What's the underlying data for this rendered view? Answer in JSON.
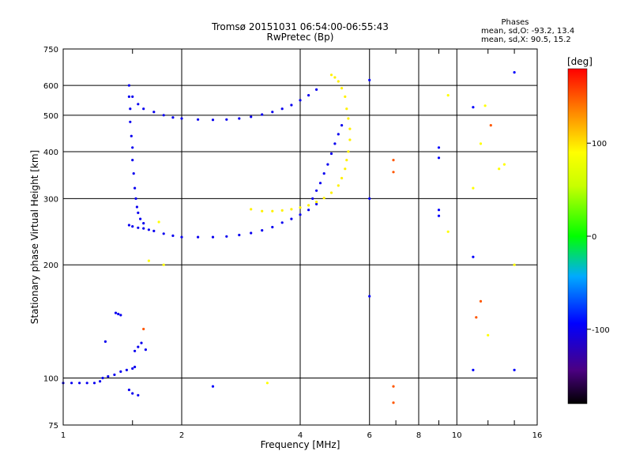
{
  "chart_data": {
    "type": "scatter",
    "title": "Tromsø 20151031 06:54:00-06:55:43",
    "subtitle": "RwPretec (Bp)",
    "xlabel": "Frequency [MHz]",
    "ylabel": "Stationary phase Virtual Height [km]",
    "xscale": "log",
    "yscale": "log",
    "xlim": [
      1,
      16
    ],
    "ylim": [
      75,
      750
    ],
    "xticks": [
      1,
      2,
      4,
      6,
      8,
      10,
      16
    ],
    "xtick_labels": [
      "1",
      "2",
      "4",
      "6",
      "8",
      "10",
      "16"
    ],
    "xminor_ticks": [
      1.5,
      7,
      9,
      12,
      14
    ],
    "yticks": [
      75,
      100,
      200,
      300,
      400,
      500,
      600,
      750
    ],
    "ytick_labels": [
      "75",
      "100",
      "200",
      "300",
      "400",
      "500",
      "600",
      "750"
    ],
    "grid": true,
    "phases": {
      "title": "Phases",
      "o_line": "mean, sd,O:  -93.2, 13.4",
      "x_line": "mean, sd,X:   90.5, 15.2"
    },
    "colorbar": {
      "label": "[deg]",
      "range": [
        -180,
        180
      ],
      "ticks": [
        100,
        0,
        -100
      ],
      "tick_labels": [
        "100",
        "0",
        "-100"
      ]
    },
    "series": [
      {
        "role": "O-mode low E trace",
        "phase": -100,
        "points": [
          [
            1.0,
            97
          ],
          [
            1.05,
            97
          ],
          [
            1.1,
            97
          ],
          [
            1.15,
            97
          ],
          [
            1.2,
            97
          ],
          [
            1.24,
            98
          ],
          [
            1.26,
            100
          ],
          [
            1.3,
            101
          ],
          [
            1.35,
            102
          ],
          [
            1.4,
            104
          ],
          [
            1.45,
            105
          ],
          [
            1.5,
            106
          ],
          [
            1.52,
            107
          ]
        ]
      },
      {
        "role": "O-mode sporadic",
        "phase": -100,
        "points": [
          [
            1.28,
            125
          ],
          [
            1.36,
            149
          ],
          [
            1.38,
            148
          ],
          [
            1.4,
            147
          ],
          [
            1.52,
            118
          ],
          [
            1.55,
            121
          ],
          [
            1.58,
            124
          ],
          [
            1.62,
            119
          ],
          [
            1.47,
            93
          ],
          [
            1.5,
            91
          ],
          [
            1.55,
            90
          ]
        ]
      },
      {
        "role": "O-mode F1 lower trace",
        "phase": -100,
        "points": [
          [
            1.47,
            255
          ],
          [
            1.5,
            253
          ],
          [
            1.55,
            251
          ],
          [
            1.6,
            250
          ],
          [
            1.65,
            248
          ],
          [
            1.7,
            246
          ],
          [
            1.8,
            242
          ],
          [
            1.9,
            239
          ],
          [
            2.0,
            237
          ],
          [
            2.2,
            237
          ],
          [
            2.4,
            237
          ],
          [
            2.6,
            238
          ],
          [
            2.8,
            240
          ],
          [
            3.0,
            243
          ],
          [
            3.2,
            247
          ],
          [
            3.4,
            252
          ],
          [
            3.6,
            259
          ],
          [
            3.8,
            265
          ],
          [
            4.0,
            272
          ],
          [
            4.2,
            280
          ],
          [
            4.4,
            290
          ]
        ]
      },
      {
        "role": "O-mode F1 cusp",
        "phase": -100,
        "points": [
          [
            1.47,
            600
          ],
          [
            1.47,
            560
          ],
          [
            1.48,
            520
          ],
          [
            1.48,
            480
          ],
          [
            1.49,
            440
          ],
          [
            1.5,
            410
          ],
          [
            1.5,
            380
          ],
          [
            1.51,
            350
          ],
          [
            1.52,
            320
          ],
          [
            1.53,
            300
          ],
          [
            1.54,
            285
          ],
          [
            1.55,
            275
          ],
          [
            1.57,
            265
          ],
          [
            1.6,
            258
          ]
        ]
      },
      {
        "role": "O-mode F2 upper trace",
        "phase": -100,
        "points": [
          [
            1.5,
            560
          ],
          [
            1.55,
            535
          ],
          [
            1.6,
            520
          ],
          [
            1.7,
            510
          ],
          [
            1.8,
            500
          ],
          [
            1.9,
            493
          ],
          [
            2.0,
            490
          ],
          [
            2.2,
            487
          ],
          [
            2.4,
            486
          ],
          [
            2.6,
            487
          ],
          [
            2.8,
            490
          ],
          [
            3.0,
            495
          ],
          [
            3.2,
            502
          ],
          [
            3.4,
            510
          ],
          [
            3.6,
            520
          ],
          [
            3.8,
            532
          ],
          [
            4.0,
            548
          ],
          [
            4.2,
            565
          ],
          [
            4.4,
            585
          ]
        ]
      },
      {
        "role": "O-mode F2 cusp",
        "phase": -100,
        "points": [
          [
            4.3,
            300
          ],
          [
            4.4,
            315
          ],
          [
            4.5,
            330
          ],
          [
            4.6,
            350
          ],
          [
            4.7,
            370
          ],
          [
            4.8,
            395
          ],
          [
            4.9,
            420
          ],
          [
            5.0,
            445
          ],
          [
            5.1,
            470
          ]
        ]
      },
      {
        "role": "X-mode F2 trace",
        "phase": 95,
        "points": [
          [
            3.0,
            281
          ],
          [
            3.2,
            278
          ],
          [
            3.4,
            278
          ],
          [
            3.6,
            279
          ],
          [
            3.8,
            281
          ],
          [
            4.0,
            284
          ],
          [
            4.2,
            288
          ],
          [
            4.4,
            294
          ],
          [
            4.6,
            301
          ],
          [
            4.8,
            311
          ],
          [
            5.0,
            325
          ],
          [
            5.1,
            340
          ],
          [
            5.2,
            360
          ],
          [
            5.25,
            380
          ],
          [
            5.3,
            400
          ],
          [
            5.35,
            430
          ],
          [
            5.35,
            460
          ],
          [
            5.3,
            490
          ],
          [
            5.25,
            520
          ],
          [
            5.2,
            560
          ],
          [
            5.1,
            590
          ],
          [
            5.0,
            615
          ],
          [
            4.9,
            630
          ],
          [
            4.8,
            640
          ]
        ]
      },
      {
        "role": "X-mode high-frequency scatter",
        "phase": 90,
        "points": [
          [
            1.65,
            205
          ],
          [
            1.75,
            260
          ],
          [
            1.8,
            200
          ],
          [
            3.3,
            97
          ],
          [
            9.5,
            245
          ],
          [
            9.5,
            565
          ],
          [
            11.0,
            320
          ],
          [
            11.5,
            420
          ],
          [
            12.8,
            360
          ],
          [
            13.2,
            370
          ],
          [
            14.0,
            200
          ],
          [
            12.0,
            130
          ],
          [
            11.8,
            530
          ]
        ]
      },
      {
        "role": "O-mode high-frequency scatter",
        "phase": -95,
        "points": [
          [
            6.0,
            165
          ],
          [
            6.0,
            300
          ],
          [
            6.0,
            620
          ],
          [
            9.0,
            410
          ],
          [
            9.0,
            385
          ],
          [
            9.0,
            270
          ],
          [
            9.0,
            280
          ],
          [
            11.0,
            210
          ],
          [
            11.0,
            105
          ],
          [
            11.0,
            525
          ],
          [
            14.0,
            105
          ],
          [
            14.0,
            650
          ],
          [
            2.4,
            95
          ]
        ]
      },
      {
        "role": "Other-phase scatter",
        "phase": 150,
        "points": [
          [
            6.9,
            380
          ],
          [
            6.9,
            353
          ],
          [
            6.9,
            95
          ],
          [
            6.9,
            86
          ],
          [
            11.2,
            145
          ],
          [
            11.5,
            160
          ],
          [
            12.2,
            470
          ],
          [
            1.6,
            135
          ]
        ]
      }
    ]
  }
}
